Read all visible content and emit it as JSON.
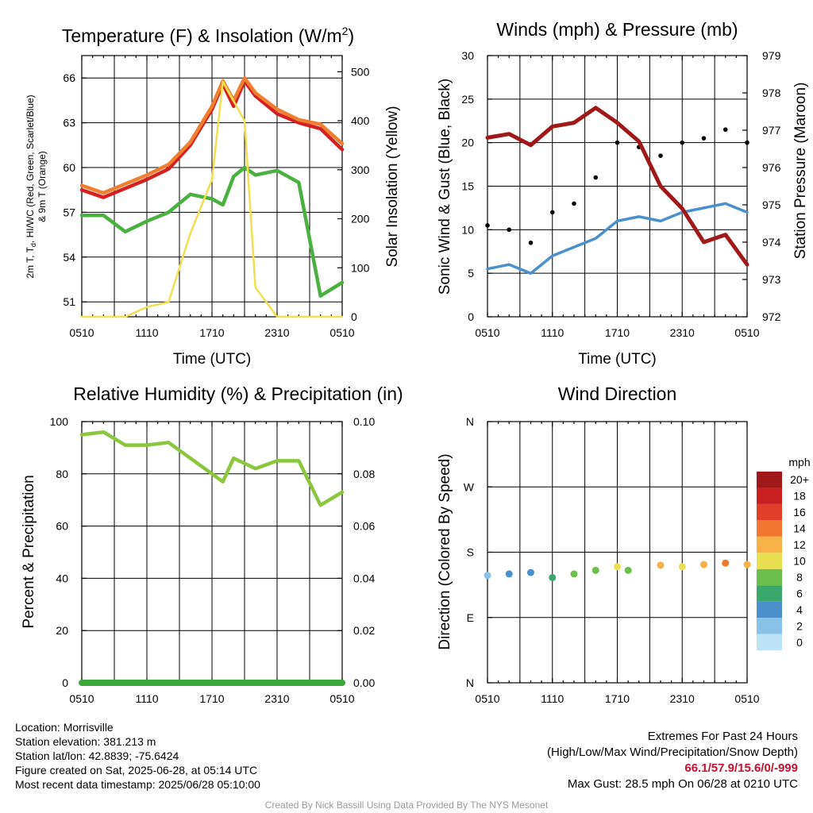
{
  "x_ticks": [
    "0510",
    "1110",
    "1710",
    "2310",
    "0510"
  ],
  "panels": {
    "temp": {
      "title": "Temperature (F) & Insolation (W/m",
      "title_sup": "2",
      "title_end": ")",
      "xlabel": "Time (UTC)",
      "ylabel_left_1": "2m T, T",
      "ylabel_left_sub": "d",
      "ylabel_left_2": ", HI/WC (Red, Green, Scarlet/Blue)",
      "ylabel_left_3": "& 9m T (Orange)",
      "ylabel_right": "Solar Insolation (Yellow)",
      "yticks_left": [
        "51",
        "54",
        "57",
        "60",
        "63",
        "66"
      ],
      "yticks_right": [
        "0",
        "100",
        "200",
        "300",
        "400",
        "500"
      ]
    },
    "wind": {
      "title": "Winds (mph) & Pressure (mb)",
      "xlabel": "Time (UTC)",
      "ylabel_left": "Sonic Wind & Gust (Blue, Black)",
      "ylabel_right": "Station Pressure (Maroon)",
      "yticks_left": [
        "0",
        "5",
        "10",
        "15",
        "20",
        "25",
        "30"
      ],
      "yticks_right": [
        "972",
        "973",
        "974",
        "975",
        "976",
        "977",
        "978",
        "979"
      ]
    },
    "rh": {
      "title": "Relative Humidity (%) & Precipitation (in)",
      "ylabel_left": "Percent & Precipitation",
      "yticks_left": [
        "0",
        "20",
        "40",
        "60",
        "80",
        "100"
      ],
      "yticks_right": [
        "0.00",
        "0.02",
        "0.04",
        "0.06",
        "0.08",
        "0.10"
      ]
    },
    "dir": {
      "title": "Wind Direction",
      "ylabel_left": "Direction (Colored By Speed)",
      "yticks_left": [
        "N",
        "E",
        "S",
        "W",
        "N"
      ],
      "colorbar_unit": "mph",
      "colorbar_labels": [
        "0",
        "2",
        "4",
        "6",
        "8",
        "10",
        "12",
        "14",
        "16",
        "18",
        "20+"
      ],
      "colorbar_colors": [
        "#bde4f4",
        "#88c2e8",
        "#4a90cc",
        "#3aa86a",
        "#6cbf4a",
        "#e8e050",
        "#f8b048",
        "#f07830",
        "#e04028",
        "#c82020",
        "#a01818"
      ]
    }
  },
  "footer": {
    "location": "Location: Morrisville",
    "elevation": "Station elevation: 381.213 m",
    "latlon": "Station lat/lon: 42.8839; -75.6424",
    "created": "Figure created on Sat, 2025-06-28, at 05:14 UTC",
    "recent": "Most recent data timestamp: 2025/06/28 05:10:00",
    "extremes_title": "Extremes For Past 24 Hours",
    "extremes_sub": "(High/Low/Max Wind/Precipitation/Snow Depth)",
    "extremes_values": "66.1/57.9/15.6/0/-999",
    "max_gust": "Max Gust: 28.5 mph On 06/28 at 0210 UTC",
    "credit": "Created By Nick Bassill Using Data Provided By The NYS Mesonet"
  },
  "chart_data": [
    {
      "type": "line",
      "title": "Temperature (F) & Insolation (W/m2)",
      "xlabel": "Time (UTC)",
      "ylabel": "2m T, Td, HI/WC (Red, Green, Scarlet/Blue) & 9m T (Orange)",
      "ylabel_right": "Solar Insolation (Yellow)",
      "x": [
        "0510",
        "0710",
        "0910",
        "1110",
        "1310",
        "1510",
        "1710",
        "1810",
        "1910",
        "2010",
        "2110",
        "2310",
        "0110",
        "0310",
        "0510"
      ],
      "ylim": [
        50,
        67.5
      ],
      "ylim_right": [
        0,
        533
      ],
      "series": [
        {
          "color": "#d42020",
          "axis": "left",
          "values": [
            58.5,
            58.0,
            58.6,
            59.2,
            59.9,
            61.5,
            63.9,
            65.6,
            64.1,
            65.8,
            64.8,
            63.6,
            63.0,
            62.6,
            61.2
          ]
        },
        {
          "color": "#f08030",
          "axis": "left",
          "values": [
            58.8,
            58.3,
            58.9,
            59.5,
            60.2,
            61.7,
            64.1,
            65.8,
            64.5,
            66.0,
            65.0,
            63.9,
            63.2,
            62.9,
            61.6
          ]
        },
        {
          "color": "#4ab040",
          "axis": "left",
          "values": [
            56.8,
            56.8,
            55.7,
            56.4,
            57.0,
            58.2,
            57.9,
            57.5,
            59.4,
            60.0,
            59.5,
            59.8,
            59.0,
            51.4,
            52.3
          ]
        },
        {
          "color": "#f0e050",
          "axis": "right",
          "values": [
            0,
            0,
            0,
            20,
            30,
            170,
            280,
            480,
            440,
            400,
            60,
            0,
            0,
            0,
            0
          ]
        }
      ]
    },
    {
      "type": "line",
      "title": "Winds (mph) & Pressure (mb)",
      "xlabel": "Time (UTC)",
      "ylabel": "Sonic Wind & Gust (Blue, Black)",
      "ylabel_right": "Station Pressure (Maroon)",
      "x": [
        "0510",
        "0710",
        "0910",
        "1110",
        "1310",
        "1510",
        "1710",
        "1910",
        "2110",
        "2310",
        "0110",
        "0310",
        "0510"
      ],
      "ylim": [
        0,
        30
      ],
      "ylim_right": [
        972,
        979
      ],
      "series": [
        {
          "color": "#4a90cc",
          "axis": "left",
          "values": [
            5.5,
            6.0,
            5.0,
            7.0,
            8.0,
            9.0,
            11.0,
            11.5,
            11.0,
            12.0,
            12.5,
            13.0,
            12.0
          ]
        },
        {
          "color": "#000000",
          "axis": "left",
          "type": "scatter",
          "values": [
            10.5,
            10.0,
            8.5,
            12.0,
            13.0,
            16.0,
            20.0,
            19.5,
            18.5,
            20.0,
            20.5,
            21.5,
            20.0
          ]
        },
        {
          "color": "#a01818",
          "axis": "right",
          "values": [
            976.8,
            976.9,
            976.6,
            977.1,
            977.2,
            977.6,
            977.2,
            976.7,
            975.5,
            974.9,
            974.0,
            974.2,
            973.4
          ]
        }
      ]
    },
    {
      "type": "line",
      "title": "Relative Humidity (%) & Precipitation (in)",
      "ylabel": "Percent & Precipitation",
      "x": [
        "0510",
        "0710",
        "0910",
        "1110",
        "1310",
        "1510",
        "1710",
        "1810",
        "1910",
        "2110",
        "2310",
        "0110",
        "0310",
        "0510"
      ],
      "ylim": [
        0,
        100
      ],
      "ylim_right": [
        0,
        0.1
      ],
      "series": [
        {
          "color": "#8cc63f",
          "axis": "left",
          "values": [
            95,
            96,
            91,
            91,
            92,
            86,
            80,
            77,
            86,
            82,
            85,
            85,
            68,
            73
          ]
        },
        {
          "color": "#3aa83a",
          "axis": "right",
          "values": [
            0,
            0,
            0,
            0,
            0,
            0,
            0,
            0,
            0,
            0,
            0,
            0,
            0,
            0
          ]
        }
      ]
    },
    {
      "type": "scatter",
      "title": "Wind Direction",
      "ylabel": "Direction (Colored By Speed)",
      "x": [
        "0510",
        "0710",
        "0910",
        "1110",
        "1310",
        "1510",
        "1710",
        "1810",
        "2110",
        "2310",
        "0110",
        "0310",
        "0510"
      ],
      "ylim": [
        0,
        360
      ],
      "series": [
        {
          "values": [
            148,
            150,
            152,
            145,
            150,
            155,
            160,
            155,
            162,
            160,
            163,
            165,
            163
          ],
          "speeds": [
            3,
            4,
            4,
            7,
            8,
            9,
            10,
            9,
            12,
            11,
            12,
            14,
            13
          ]
        }
      ]
    }
  ]
}
